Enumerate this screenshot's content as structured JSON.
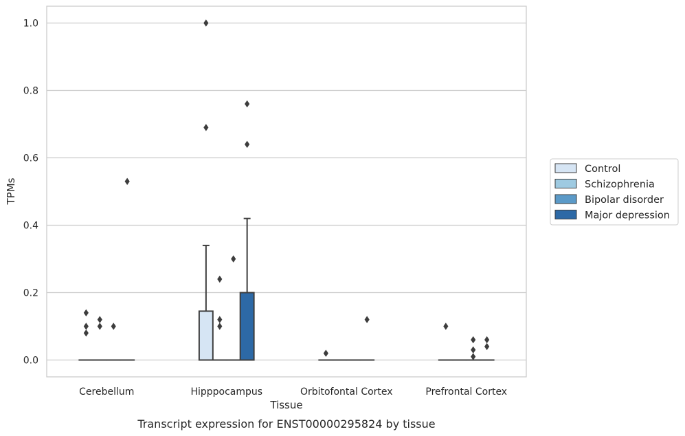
{
  "caption": "Transcript expression for ENST00000295824 by tissue",
  "chart_data": {
    "type": "box",
    "title": "",
    "xlabel": "Tissue",
    "ylabel": "TPMs",
    "ylim": [
      -0.05,
      1.05
    ],
    "yticks": [
      0.0,
      0.2,
      0.4,
      0.6,
      0.8,
      1.0
    ],
    "ytick_labels": [
      "0.0",
      "0.2",
      "0.4",
      "0.6",
      "0.8",
      "1.0"
    ],
    "grid": "horizontal",
    "legend_position": "right",
    "categories": [
      "Cerebellum",
      "Hipppocampus",
      "Orbitofontal Cortex",
      "Prefrontal Cortex"
    ],
    "series": [
      {
        "name": "Control",
        "color": "#d6e5f4",
        "boxes": [
          {
            "q1": 0,
            "median": 0,
            "q3": 0,
            "whisker_low": 0,
            "whisker_high": 0,
            "outliers": [
              0.14,
              0.1,
              0.08
            ]
          },
          {
            "q1": 0,
            "median": 0,
            "q3": 0.145,
            "whisker_low": 0,
            "whisker_high": 0.34,
            "outliers": [
              1.0,
              0.69
            ]
          },
          {
            "q1": 0,
            "median": 0,
            "q3": 0,
            "whisker_low": 0,
            "whisker_high": 0,
            "outliers": [
              0.02
            ]
          },
          {
            "q1": 0,
            "median": 0,
            "q3": 0,
            "whisker_low": 0,
            "whisker_high": 0,
            "outliers": [
              0.1
            ]
          }
        ]
      },
      {
        "name": "Schizophrenia",
        "color": "#9ecae1",
        "boxes": [
          {
            "q1": 0,
            "median": 0,
            "q3": 0,
            "whisker_low": 0,
            "whisker_high": 0,
            "outliers": [
              0.12,
              0.1
            ]
          },
          {
            "q1": 0,
            "median": 0,
            "q3": 0,
            "whisker_low": 0,
            "whisker_high": 0,
            "outliers": [
              0.24,
              0.12,
              0.1
            ]
          },
          {
            "q1": 0,
            "median": 0,
            "q3": 0,
            "whisker_low": 0,
            "whisker_high": 0,
            "outliers": []
          },
          {
            "q1": 0,
            "median": 0,
            "q3": 0,
            "whisker_low": 0,
            "whisker_high": 0,
            "outliers": []
          }
        ]
      },
      {
        "name": "Bipolar disorder",
        "color": "#5b9ac8",
        "boxes": [
          {
            "q1": 0,
            "median": 0,
            "q3": 0,
            "whisker_low": 0,
            "whisker_high": 0,
            "outliers": [
              0.1
            ]
          },
          {
            "q1": 0,
            "median": 0,
            "q3": 0,
            "whisker_low": 0,
            "whisker_high": 0,
            "outliers": [
              0.3
            ]
          },
          {
            "q1": 0,
            "median": 0,
            "q3": 0,
            "whisker_low": 0,
            "whisker_high": 0,
            "outliers": []
          },
          {
            "q1": 0,
            "median": 0,
            "q3": 0,
            "whisker_low": 0,
            "whisker_high": 0,
            "outliers": [
              0.06,
              0.03,
              0.01
            ]
          }
        ]
      },
      {
        "name": "Major depression",
        "color": "#2d69a6",
        "boxes": [
          {
            "q1": 0,
            "median": 0,
            "q3": 0,
            "whisker_low": 0,
            "whisker_high": 0,
            "outliers": [
              0.53
            ]
          },
          {
            "q1": 0,
            "median": 0,
            "q3": 0.2,
            "whisker_low": 0,
            "whisker_high": 0.42,
            "outliers": [
              0.76,
              0.64
            ]
          },
          {
            "q1": 0,
            "median": 0,
            "q3": 0,
            "whisker_low": 0,
            "whisker_high": 0,
            "outliers": [
              0.12
            ]
          },
          {
            "q1": 0,
            "median": 0,
            "q3": 0,
            "whisker_low": 0,
            "whisker_high": 0,
            "outliers": [
              0.06,
              0.04
            ]
          }
        ]
      }
    ]
  }
}
